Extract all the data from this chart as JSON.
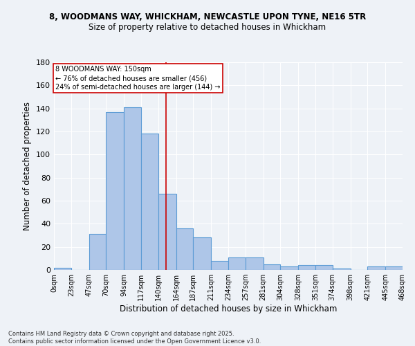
{
  "title1": "8, WOODMANS WAY, WHICKHAM, NEWCASTLE UPON TYNE, NE16 5TR",
  "title2": "Size of property relative to detached houses in Whickham",
  "xlabel": "Distribution of detached houses by size in Whickham",
  "ylabel": "Number of detached properties",
  "bin_edges": [
    0,
    23,
    47,
    70,
    94,
    117,
    140,
    164,
    187,
    211,
    234,
    257,
    281,
    304,
    328,
    351,
    374,
    398,
    421,
    445,
    468
  ],
  "counts": [
    2,
    0,
    31,
    137,
    141,
    118,
    66,
    36,
    28,
    8,
    11,
    11,
    5,
    3,
    4,
    4,
    1,
    0,
    3,
    3
  ],
  "bar_color": "#aec6e8",
  "bar_edge_color": "#5b9bd5",
  "property_size": 150,
  "property_label": "8 WOODMANS WAY: 150sqm",
  "annotation_line1": "← 76% of detached houses are smaller (456)",
  "annotation_line2": "24% of semi-detached houses are larger (144) →",
  "annotation_box_color": "#ffffff",
  "annotation_box_edge_color": "#cc0000",
  "vline_color": "#cc0000",
  "background_color": "#eef2f7",
  "grid_color": "#ffffff",
  "footer": "Contains HM Land Registry data © Crown copyright and database right 2025.\nContains public sector information licensed under the Open Government Licence v3.0.",
  "ylim": [
    0,
    180
  ],
  "tick_labels": [
    "0sqm",
    "23sqm",
    "47sqm",
    "70sqm",
    "94sqm",
    "117sqm",
    "140sqm",
    "164sqm",
    "187sqm",
    "211sqm",
    "234sqm",
    "257sqm",
    "281sqm",
    "304sqm",
    "328sqm",
    "351sqm",
    "374sqm",
    "398sqm",
    "421sqm",
    "445sqm",
    "468sqm"
  ]
}
